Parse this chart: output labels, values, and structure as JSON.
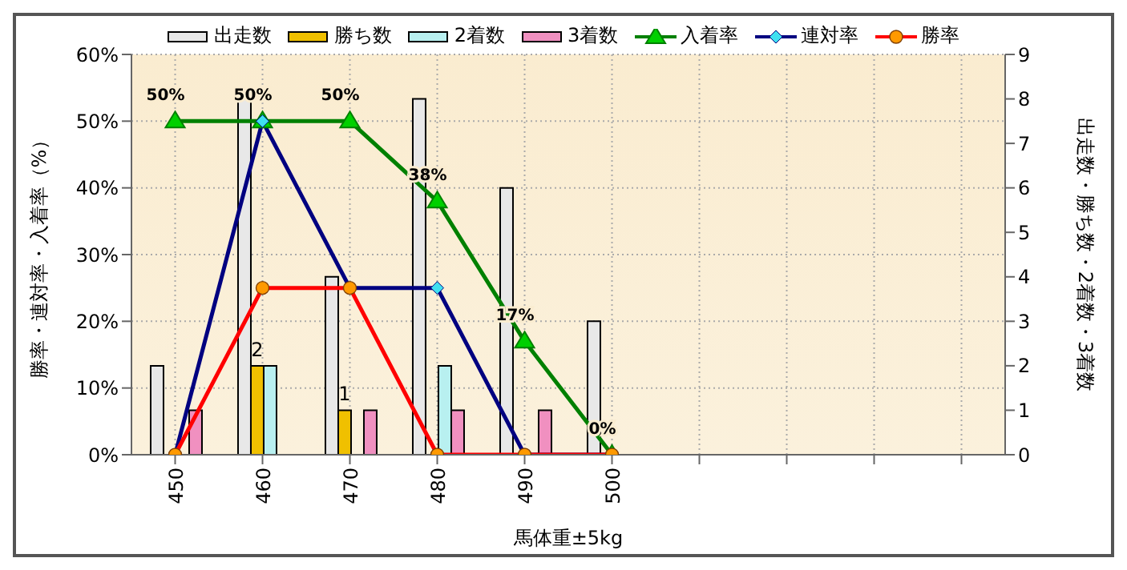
{
  "chart_data": {
    "type": "bar",
    "xlabel": "馬体重±5kg",
    "ylabel": "勝率・連対率・入着率（%）",
    "y2label": "出走数・勝ち数・2着数・3着数",
    "categories": [
      "450",
      "460",
      "470",
      "480",
      "490",
      "500",
      null,
      null,
      null,
      null
    ],
    "series": [
      {
        "name": "出走数",
        "axis": "y2",
        "color": "#e8e8e8",
        "values": [
          2,
          8,
          4,
          8,
          6,
          3,
          null,
          null,
          null,
          null
        ]
      },
      {
        "name": "勝ち数",
        "axis": "y2",
        "color": "#f0c000",
        "values": [
          null,
          2,
          1,
          null,
          null,
          null,
          null,
          null,
          null,
          null
        ],
        "value_labels": [
          null,
          "2",
          "1",
          null,
          null,
          null,
          null,
          null,
          null,
          null
        ]
      },
      {
        "name": "2着数",
        "axis": "y2",
        "color": "#b8f0f0",
        "values": [
          null,
          2,
          null,
          2,
          null,
          null,
          null,
          null,
          null,
          null
        ]
      },
      {
        "name": "3着数",
        "axis": "y2",
        "color": "#f090c0",
        "values": [
          1,
          null,
          1,
          1,
          1,
          null,
          null,
          null,
          null,
          null
        ]
      },
      {
        "name": "入着率",
        "type": "line",
        "color": "#008000",
        "marker": "triangle",
        "values": [
          50,
          50,
          50,
          38,
          17,
          0,
          null,
          null,
          null,
          null
        ],
        "value_labels": [
          "50%",
          "50%",
          "50%",
          "38%",
          "17%",
          "0%",
          null,
          null,
          null,
          null
        ]
      },
      {
        "name": "連対率",
        "type": "line",
        "color": "#000080",
        "marker": "diamond",
        "values": [
          0,
          50,
          25,
          25,
          0,
          0,
          null,
          null,
          null,
          null
        ]
      },
      {
        "name": "勝率",
        "type": "line",
        "color": "#ff0000",
        "marker": "circle",
        "values": [
          0,
          25,
          25,
          0,
          0,
          0,
          null,
          null,
          null,
          null
        ]
      }
    ],
    "ylim": [
      0,
      60
    ],
    "yticks": [
      {
        "value": 0,
        "label": "0%"
      },
      {
        "value": 10,
        "label": "10%"
      },
      {
        "value": 20,
        "label": "20%"
      },
      {
        "value": 30,
        "label": "30%"
      },
      {
        "value": 40,
        "label": "40%"
      },
      {
        "value": 50,
        "label": "50%"
      },
      {
        "value": 60,
        "label": "60%"
      }
    ],
    "y2lim": [
      0,
      9
    ],
    "y2ticks": [
      0,
      1,
      2,
      3,
      4,
      5,
      6,
      7,
      8,
      9
    ],
    "grid": true,
    "legend": "top"
  }
}
